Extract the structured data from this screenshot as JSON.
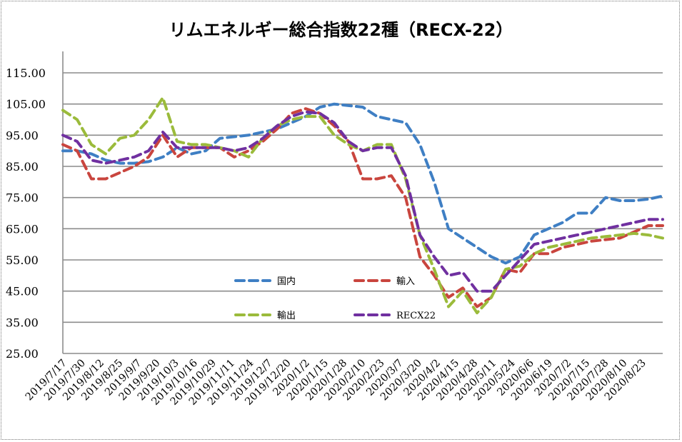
{
  "chart_data": {
    "type": "line",
    "title": "リムエネルギー総合指数22種（RECX-22）",
    "xlabel": "",
    "ylabel": "",
    "ylim": [
      25,
      115
    ],
    "yticks": [
      "115.00",
      "105.00",
      "95.00",
      "85.00",
      "75.00",
      "65.00",
      "55.00",
      "45.00",
      "35.00",
      "25.00"
    ],
    "ytick_values": [
      115,
      105,
      95,
      85,
      75,
      65,
      55,
      45,
      35,
      25
    ],
    "xtick_labels": [
      "2019/7/17",
      "2019/7/30",
      "2019/8/12",
      "2019/8/25",
      "2019/9/7",
      "2019/9/20",
      "2019/10/3",
      "2019/10/16",
      "2019/10/29",
      "2019/11/11",
      "2019/11/24",
      "2019/12/7",
      "2019/12/20",
      "2020/1/2",
      "2020/1/15",
      "2020/1/28",
      "2020/2/10",
      "2020/2/23",
      "2020/3/7",
      "2020/3/20",
      "2020/4/2",
      "2020/4/15",
      "2020/4/28",
      "2020/5/11",
      "2020/5/24",
      "2020/6/6",
      "2020/6/19",
      "2020/7/2",
      "2020/7/15",
      "2020/7/28",
      "2020/8/10",
      "2020/8/23"
    ],
    "grid": true,
    "legend_placement": "center-left inside",
    "x_note": "approx. 10-day sampling from 2019/7/17 onward (index)",
    "series": [
      {
        "name": "国内",
        "color": "#3f7fc4",
        "values": [
          90,
          90,
          89,
          87,
          86,
          86,
          86.5,
          88,
          91,
          89,
          90,
          94,
          94.5,
          95,
          96,
          97,
          99,
          101,
          104,
          105,
          104.5,
          104,
          101,
          100,
          99,
          92,
          80,
          65,
          62,
          59,
          56,
          54,
          56,
          63,
          65,
          67,
          70,
          70,
          75,
          74,
          74,
          74.5,
          75.5
        ]
      },
      {
        "name": "輸入",
        "color": "#c9453e",
        "values": [
          92,
          90,
          81,
          81,
          83,
          85,
          88,
          95,
          88,
          91,
          91,
          91,
          88,
          90,
          93,
          97,
          102,
          103.5,
          102,
          98,
          93,
          81,
          81,
          82,
          75,
          56,
          50,
          43,
          46,
          40,
          43,
          52,
          51,
          57,
          57,
          59,
          60,
          61,
          61.5,
          62,
          64,
          66,
          66
        ]
      },
      {
        "name": "輸出",
        "color": "#9bbb3b",
        "values": [
          103,
          100,
          92,
          89,
          94,
          95,
          100,
          107,
          93,
          92,
          92,
          91,
          90,
          88,
          94,
          98,
          100,
          101,
          101,
          95,
          92,
          90,
          92,
          92,
          81,
          63,
          52,
          40,
          45,
          38,
          43,
          52,
          53,
          57,
          59,
          60,
          61,
          62,
          62.5,
          63,
          63.5,
          63,
          62
        ]
      },
      {
        "name": "RECX22",
        "color": "#7030a0",
        "values": [
          95,
          93,
          87,
          86,
          87,
          88,
          90,
          96,
          91,
          91,
          91,
          91,
          90,
          91,
          94,
          98,
          101,
          102.5,
          102,
          99,
          93,
          90,
          91,
          91,
          82,
          63,
          56,
          50,
          51,
          45,
          45,
          50,
          55,
          60,
          61,
          62,
          63,
          64,
          65,
          66,
          67,
          68,
          68
        ]
      }
    ]
  }
}
